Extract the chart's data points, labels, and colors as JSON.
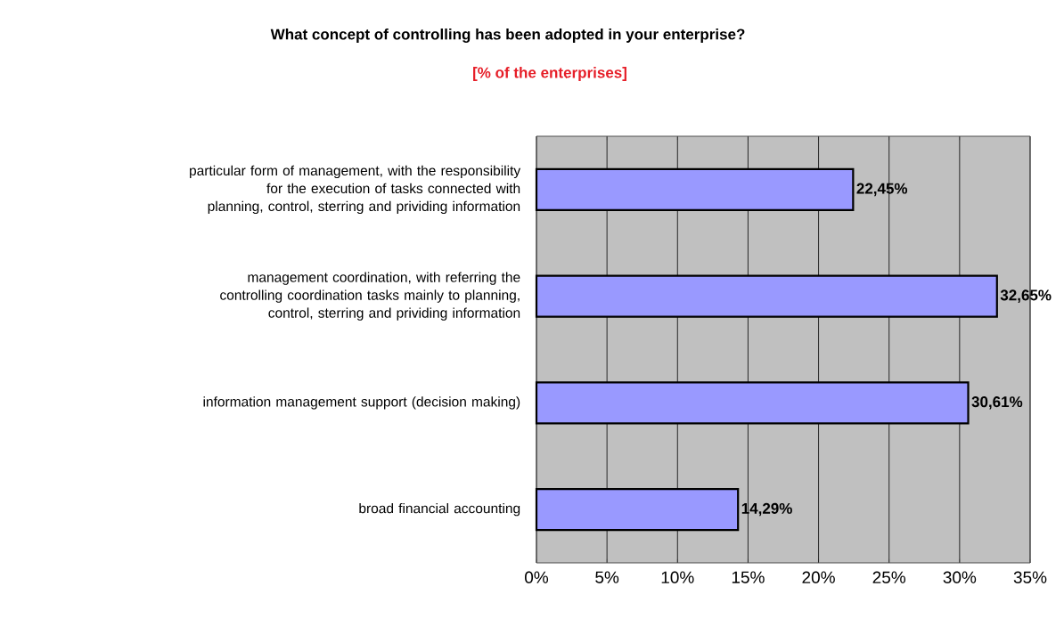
{
  "chart_data": {
    "type": "bar",
    "orientation": "horizontal",
    "title": "What concept of controlling has been adopted in your enterprise?",
    "subtitle": "[% of the enterprises]",
    "categories": [
      "particular form of management, with the responsibility for the execution of tasks connected with planning, control, sterring and prividing information",
      "management coordination, with  referring  the controlling coordination tasks  mainly to planning, control, sterring and prividing information",
      "information management support (decision making)",
      "broad financial accounting"
    ],
    "values": [
      22.45,
      32.65,
      30.61,
      14.29
    ],
    "value_labels": [
      "22,45%",
      "32,65%",
      "30,61%",
      "14,29%"
    ],
    "color": "#9999ff",
    "xlim": [
      0,
      35
    ],
    "xticks": [
      {
        "value": 0,
        "label": "0%"
      },
      {
        "value": 5,
        "label": "5%"
      },
      {
        "value": 10,
        "label": "10%"
      },
      {
        "value": 15,
        "label": "15%"
      },
      {
        "value": 20,
        "label": "20%"
      },
      {
        "value": 25,
        "label": "25%"
      },
      {
        "value": 30,
        "label": "30%"
      },
      {
        "value": 35,
        "label": "35%"
      }
    ],
    "grid": "x"
  }
}
